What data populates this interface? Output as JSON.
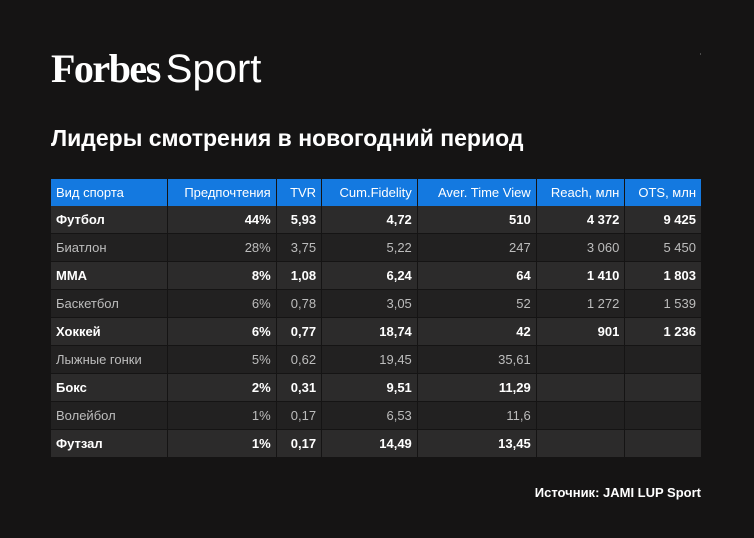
{
  "logo": {
    "brand": "Forbes",
    "section": "Sport"
  },
  "title": "Лидеры смотрения в новогодний период",
  "chart_data": {
    "type": "table",
    "title": "Лидеры смотрения в новогодний период",
    "columns": [
      "Вид спорта",
      "Предпочтения",
      "TVR",
      "Cum.Fidelity",
      "Aver. Time View",
      "Reach, млн",
      "OTS, млн"
    ],
    "rows": [
      [
        "Футбол",
        "44%",
        "5,93",
        "4,72",
        "510",
        "4 372",
        "9 425"
      ],
      [
        "Биатлон",
        "28%",
        "3,75",
        "5,22",
        "247",
        "3 060",
        "5 450"
      ],
      [
        "MMA",
        "8%",
        "1,08",
        "6,24",
        "64",
        "1 410",
        "1 803"
      ],
      [
        "Баскетбол",
        "6%",
        "0,78",
        "3,05",
        "52",
        "1 272",
        "1 539"
      ],
      [
        "Хоккей",
        "6%",
        "0,77",
        "18,74",
        "42",
        "901",
        "1 236"
      ],
      [
        "Лыжные гонки",
        "5%",
        "0,62",
        "19,45",
        "35,61",
        "",
        ""
      ],
      [
        "Бокс",
        "2%",
        "0,31",
        "9,51",
        "11,29",
        "",
        ""
      ],
      [
        "Волейбол",
        "1%",
        "0,17",
        "6,53",
        "11,6",
        "",
        ""
      ],
      [
        "Футзал",
        "1%",
        "0,17",
        "14,49",
        "13,45",
        "",
        ""
      ]
    ]
  },
  "source": "Источник: JAMI LUP Sport",
  "colors": {
    "header": "#1479e0",
    "background": "#151414",
    "row_dark": "#2c2b2b",
    "row_light": "#222121"
  }
}
